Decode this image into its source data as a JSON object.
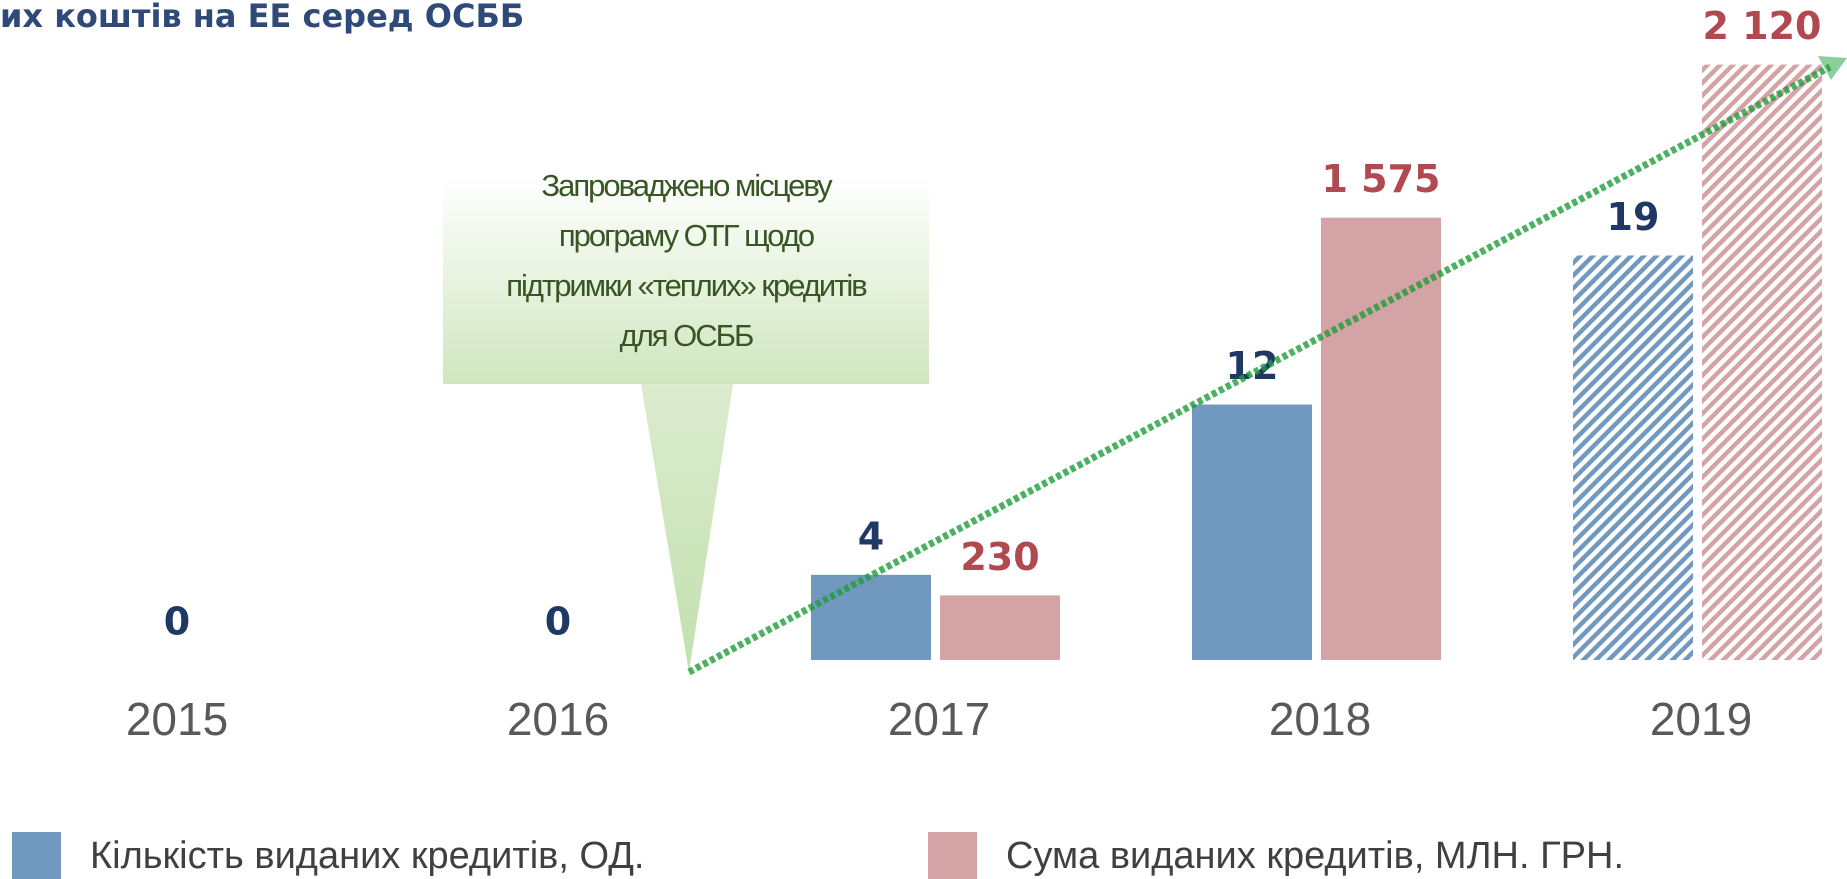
{
  "chart_data": {
    "type": "bar",
    "title": "их коштів на ЕЕ серед ОСББ",
    "categories": [
      "2015",
      "2016",
      "2017",
      "2018",
      "2019"
    ],
    "series": [
      {
        "name": "Кількість виданих кредитів, ОД.",
        "color": "#7199c0",
        "values": [
          0,
          0,
          4,
          12,
          19
        ]
      },
      {
        "name": "Сума виданих кредитів, МЛН. ГРН.",
        "color": "#d4a3a5",
        "axis": "y2",
        "values": [
          null,
          null,
          230,
          1575,
          2120
        ],
        "value_labels": [
          null,
          null,
          "230",
          "1 575",
          "2 120"
        ]
      }
    ],
    "hatched": [
      false,
      false,
      false,
      false,
      true
    ],
    "ylim": [
      0,
      31
    ],
    "y2lim": [
      0,
      2350
    ],
    "annotation": [
      "Запроваджено місцеву",
      "програму ОТГ щодо",
      "підтримки «теплих» кредитів",
      "для ОСББ"
    ],
    "trend_color": "#1e9e3a"
  }
}
